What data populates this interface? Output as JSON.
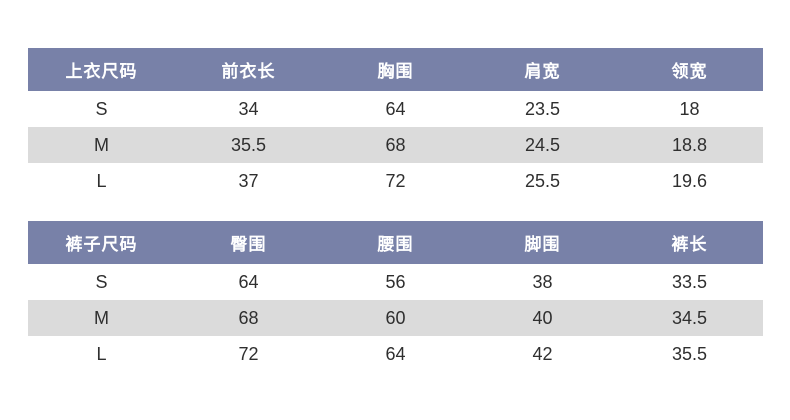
{
  "colors": {
    "header_bg": "#7881A8",
    "header_text": "#FFFFFF",
    "row_alt_bg": "#DBDBDB",
    "row_bg": "#FFFFFF",
    "row_text": "#2F2F2F",
    "page_bg": "#FFFFFF"
  },
  "tables": [
    {
      "name": "top-size-chart",
      "headers": [
        "上衣尺码",
        "前衣长",
        "胸围",
        "肩宽",
        "领宽"
      ],
      "rows": [
        [
          "S",
          "34",
          "64",
          "23.5",
          "18"
        ],
        [
          "M",
          "35.5",
          "68",
          "24.5",
          "18.8"
        ],
        [
          "L",
          "37",
          "72",
          "25.5",
          "19.6"
        ]
      ]
    },
    {
      "name": "pants-size-chart",
      "headers": [
        "裤子尺码",
        "臀围",
        "腰围",
        "脚围",
        "裤长"
      ],
      "rows": [
        [
          "S",
          "64",
          "56",
          "38",
          "33.5"
        ],
        [
          "M",
          "68",
          "60",
          "40",
          "34.5"
        ],
        [
          "L",
          "72",
          "64",
          "42",
          "35.5"
        ]
      ]
    }
  ],
  "chart_data": [
    {
      "type": "table",
      "title": "上衣尺码",
      "columns": [
        "上衣尺码",
        "前衣长",
        "胸围",
        "肩宽",
        "领宽"
      ],
      "rows": [
        [
          "S",
          34,
          64,
          23.5,
          18
        ],
        [
          "M",
          35.5,
          68,
          24.5,
          18.8
        ],
        [
          "L",
          37,
          72,
          25.5,
          19.6
        ]
      ]
    },
    {
      "type": "table",
      "title": "裤子尺码",
      "columns": [
        "裤子尺码",
        "臀围",
        "腰围",
        "脚围",
        "裤长"
      ],
      "rows": [
        [
          "S",
          64,
          56,
          38,
          33.5
        ],
        [
          "M",
          68,
          60,
          40,
          34.5
        ],
        [
          "L",
          72,
          64,
          42,
          35.5
        ]
      ]
    }
  ]
}
